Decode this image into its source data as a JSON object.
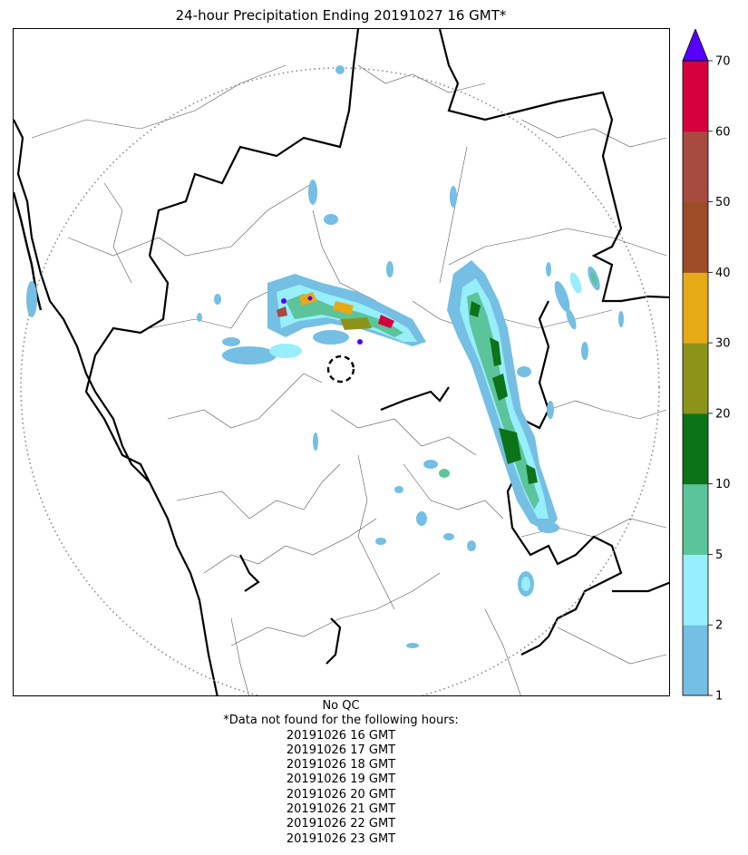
{
  "title": "24-hour Precipitation Ending 20191027 16 GMT*",
  "map": {
    "layers": [
      "state-borders",
      "district-borders",
      "coastline",
      "radar-range-ring",
      "radar-site-ring",
      "precipitation-field"
    ]
  },
  "colorbar": {
    "ticks": [
      "1",
      "2",
      "5",
      "10",
      "20",
      "30",
      "40",
      "50",
      "60",
      "70"
    ],
    "colors": [
      "#74bfe3",
      "#97eefc",
      "#5bc49a",
      "#0d7319",
      "#8b9419",
      "#e6aa17",
      "#9c4c27",
      "#a74a40",
      "#d6003f"
    ],
    "extend_color": "#5500ff"
  },
  "notes": {
    "qc": "No QC",
    "header": "*Data not found for the following hours:",
    "hours": [
      "20191026 16 GMT",
      "20191026 17 GMT",
      "20191026 18 GMT",
      "20191026 19 GMT",
      "20191026 20 GMT",
      "20191026 21 GMT",
      "20191026 22 GMT",
      "20191026 23 GMT"
    ]
  }
}
